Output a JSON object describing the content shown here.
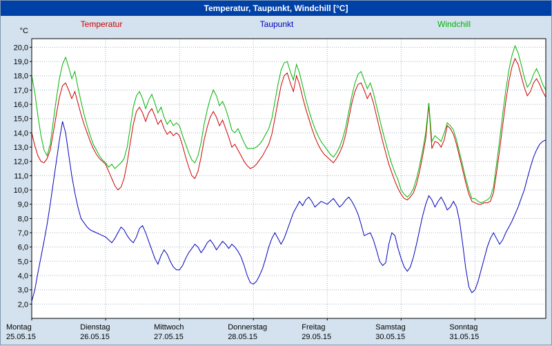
{
  "title": "Temperatur, Taupunkt, Windchill [°C]",
  "colors": {
    "title_bar": "#0041a8",
    "title_text": "#ffffff",
    "background": "#d3e2ee",
    "plot_background": "#ffffff",
    "grid": "#a8b4be",
    "axis": "#000000",
    "temperatur": "#cc0000",
    "taupunkt": "#0000bb",
    "windchill": "#00b400"
  },
  "legend": [
    {
      "label": "Temperatur",
      "color": "#cc0000"
    },
    {
      "label": "Taupunkt",
      "color": "#0000bb"
    },
    {
      "label": "Windchill",
      "color": "#00b400"
    }
  ],
  "chart_data": {
    "type": "line",
    "title": "Temperatur, Taupunkt, Windchill [°C]",
    "ylabel": "°C",
    "x_unit": "hours",
    "ylim": [
      1.0,
      20.6
    ],
    "y_axis": {
      "unit": "°C",
      "min": 2,
      "max": 20,
      "step": 1,
      "decimal_separator": ","
    },
    "grid": "dotted",
    "legend_position": "top",
    "days": [
      {
        "name": "Montag",
        "date": "25.05.15"
      },
      {
        "name": "Dienstag",
        "date": "26.05.15"
      },
      {
        "name": "Mittwoch",
        "date": "27.05.15"
      },
      {
        "name": "Donnerstag",
        "date": "28.05.15"
      },
      {
        "name": "Freitag",
        "date": "29.05.15"
      },
      {
        "name": "Samstag",
        "date": "30.05.15"
      },
      {
        "name": "Sonntag",
        "date": "31.05.15"
      }
    ],
    "series": [
      {
        "name": "Temperatur",
        "color": "#cc0000",
        "values": [
          14.0,
          13.1,
          12.4,
          12.0,
          11.9,
          12.2,
          12.8,
          14.0,
          15.3,
          16.5,
          17.3,
          17.5,
          17.0,
          16.4,
          16.9,
          16.1,
          15.3,
          14.6,
          14.0,
          13.4,
          12.9,
          12.5,
          12.2,
          12.0,
          11.8,
          11.3,
          10.8,
          10.3,
          10.0,
          10.2,
          10.8,
          11.9,
          13.3,
          14.6,
          15.5,
          15.8,
          15.4,
          14.8,
          15.4,
          15.7,
          15.2,
          14.6,
          14.9,
          14.3,
          13.9,
          14.1,
          13.8,
          14.0,
          13.8,
          13.1,
          12.3,
          11.6,
          11.0,
          10.8,
          11.3,
          12.3,
          13.5,
          14.4,
          15.1,
          15.5,
          15.1,
          14.5,
          14.9,
          14.3,
          13.7,
          13.0,
          13.2,
          12.8,
          12.4,
          12.0,
          11.7,
          11.5,
          11.6,
          11.8,
          12.1,
          12.4,
          12.8,
          13.2,
          13.9,
          15.0,
          16.2,
          17.3,
          18.0,
          18.2,
          17.5,
          16.9,
          18.0,
          17.4,
          16.5,
          15.7,
          15.0,
          14.3,
          13.7,
          13.2,
          12.8,
          12.5,
          12.3,
          12.1,
          11.9,
          12.2,
          12.6,
          13.1,
          13.9,
          15.0,
          16.1,
          16.9,
          17.4,
          17.5,
          17.0,
          16.4,
          16.8,
          16.1,
          15.2,
          14.3,
          13.4,
          12.6,
          11.8,
          11.2,
          10.6,
          10.1,
          9.7,
          9.4,
          9.3,
          9.5,
          9.8,
          10.4,
          11.3,
          12.4,
          13.6,
          16.0,
          12.9,
          13.4,
          13.3,
          13.0,
          13.5,
          14.5,
          14.3,
          13.9,
          13.2,
          12.3,
          11.4,
          10.5,
          9.7,
          9.2,
          9.1,
          9.0,
          9.0,
          9.1,
          9.1,
          9.2,
          9.8,
          11.2,
          12.8,
          14.5,
          16.2,
          17.6,
          18.6,
          19.2,
          18.8,
          18.0,
          17.2,
          16.6,
          16.9,
          17.5,
          17.8,
          17.4,
          16.9,
          16.5
        ]
      },
      {
        "name": "Taupunkt",
        "color": "#0000bb",
        "values": [
          2.2,
          3.0,
          4.2,
          5.3,
          6.4,
          7.6,
          9.0,
          10.5,
          12.0,
          13.5,
          14.8,
          14.0,
          12.5,
          11.0,
          9.8,
          8.8,
          8.0,
          7.7,
          7.4,
          7.2,
          7.1,
          7.0,
          6.9,
          6.8,
          6.7,
          6.5,
          6.3,
          6.6,
          7.0,
          7.4,
          7.2,
          6.8,
          6.5,
          6.3,
          6.7,
          7.3,
          7.5,
          7.0,
          6.4,
          5.8,
          5.2,
          4.8,
          5.4,
          5.8,
          5.5,
          5.0,
          4.6,
          4.4,
          4.4,
          4.7,
          5.2,
          5.6,
          5.9,
          6.2,
          6.0,
          5.6,
          5.9,
          6.3,
          6.5,
          6.2,
          5.8,
          6.1,
          6.4,
          6.2,
          5.9,
          6.2,
          6.0,
          5.7,
          5.3,
          4.7,
          4.0,
          3.5,
          3.4,
          3.6,
          4.0,
          4.5,
          5.2,
          6.0,
          6.6,
          7.0,
          6.6,
          6.2,
          6.6,
          7.2,
          7.8,
          8.4,
          8.8,
          9.2,
          8.9,
          9.3,
          9.5,
          9.2,
          8.8,
          9.0,
          9.2,
          9.1,
          9.0,
          9.2,
          9.4,
          9.1,
          8.8,
          9.0,
          9.3,
          9.5,
          9.2,
          8.8,
          8.3,
          7.6,
          6.8,
          6.9,
          7.0,
          6.5,
          5.8,
          5.0,
          4.7,
          4.9,
          6.2,
          7.0,
          6.8,
          5.9,
          5.2,
          4.6,
          4.3,
          4.6,
          5.3,
          6.2,
          7.2,
          8.2,
          9.0,
          9.6,
          9.3,
          8.8,
          9.2,
          9.5,
          9.1,
          8.6,
          8.8,
          9.2,
          8.8,
          7.8,
          6.2,
          4.5,
          3.2,
          2.8,
          3.0,
          3.6,
          4.4,
          5.2,
          6.0,
          6.6,
          7.0,
          6.6,
          6.2,
          6.5,
          7.0,
          7.4,
          7.8,
          8.3,
          8.8,
          9.4,
          10.0,
          10.8,
          11.6,
          12.3,
          12.8,
          13.2,
          13.4,
          13.5
        ]
      },
      {
        "name": "Windchill",
        "color": "#00b400",
        "values": [
          18.0,
          16.8,
          15.2,
          13.8,
          12.8,
          12.4,
          13.2,
          14.8,
          16.4,
          17.8,
          18.8,
          19.3,
          18.6,
          17.8,
          18.3,
          17.2,
          16.2,
          15.3,
          14.5,
          13.8,
          13.2,
          12.8,
          12.4,
          12.1,
          11.9,
          11.6,
          11.8,
          11.5,
          11.7,
          11.9,
          12.2,
          13.0,
          14.4,
          15.8,
          16.6,
          16.9,
          16.4,
          15.7,
          16.3,
          16.7,
          16.1,
          15.4,
          15.8,
          15.1,
          14.6,
          14.9,
          14.5,
          14.7,
          14.5,
          13.8,
          13.2,
          12.6,
          12.1,
          11.9,
          12.4,
          13.3,
          14.6,
          15.6,
          16.4,
          17.0,
          16.6,
          15.9,
          16.2,
          15.7,
          15.0,
          14.2,
          14.0,
          14.3,
          13.8,
          13.3,
          12.9,
          12.9,
          12.9,
          13.0,
          13.2,
          13.5,
          13.9,
          14.3,
          15.0,
          16.2,
          17.4,
          18.4,
          18.9,
          19.0,
          18.3,
          17.7,
          18.8,
          18.2,
          17.3,
          16.4,
          15.6,
          14.9,
          14.3,
          13.8,
          13.4,
          13.1,
          12.8,
          12.5,
          12.3,
          12.6,
          13.0,
          13.6,
          14.4,
          15.5,
          16.6,
          17.5,
          18.1,
          18.3,
          17.7,
          17.1,
          17.5,
          16.8,
          15.9,
          15.0,
          14.1,
          13.3,
          12.5,
          11.8,
          11.2,
          10.7,
          10.0,
          9.7,
          9.5,
          9.7,
          10.1,
          10.8,
          11.7,
          12.8,
          14.0,
          16.1,
          13.4,
          13.8,
          13.6,
          13.4,
          14.0,
          14.7,
          14.5,
          14.2,
          13.5,
          12.6,
          11.7,
          10.8,
          10.0,
          9.4,
          9.4,
          9.2,
          9.1,
          9.2,
          9.3,
          9.5,
          10.2,
          11.8,
          13.5,
          15.3,
          17.0,
          18.4,
          19.4,
          20.1,
          19.6,
          18.8,
          17.9,
          17.2,
          17.5,
          18.1,
          18.5,
          18.0,
          17.4,
          17.0
        ]
      }
    ]
  }
}
